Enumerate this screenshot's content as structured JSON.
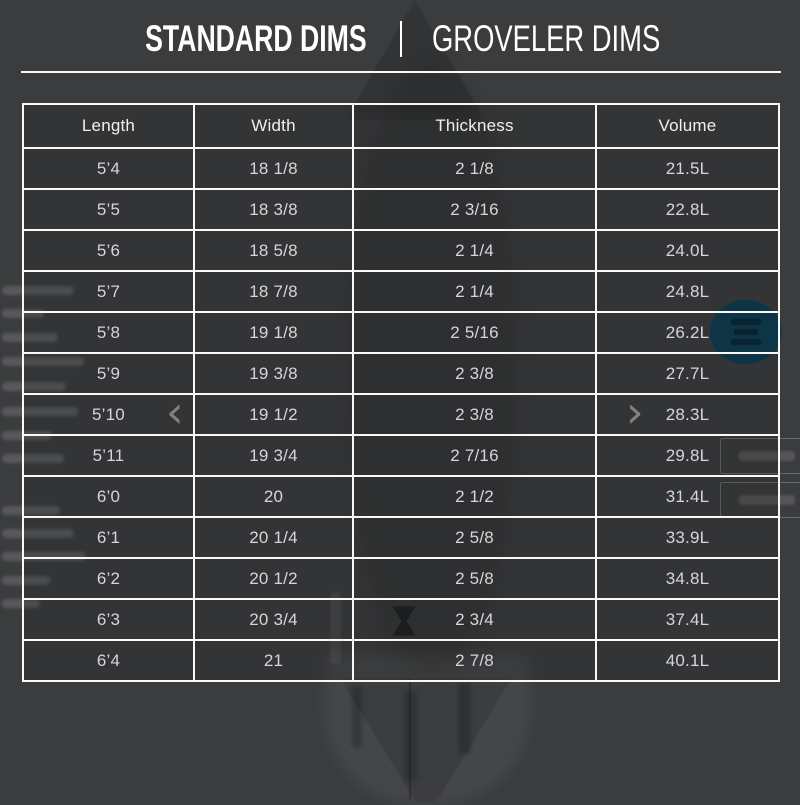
{
  "tabs": [
    {
      "label": "STANDARD DIMS",
      "active": true
    },
    {
      "label": "GROVELER DIMS",
      "active": false
    }
  ],
  "table": {
    "columns": [
      "Length",
      "Width",
      "Thickness",
      "Volume"
    ],
    "rows": [
      [
        "5’4",
        "18 1/8",
        "2 1/8",
        "21.5L"
      ],
      [
        "5’5",
        "18 3/8",
        "2 3/16",
        "22.8L"
      ],
      [
        "5’6",
        "18 5/8",
        "2 1/4",
        "24.0L"
      ],
      [
        "5’7",
        "18 7/8",
        "2 1/4",
        "24.8L"
      ],
      [
        "5’8",
        "19 1/8",
        "2 5/16",
        "26.2L"
      ],
      [
        "5’9",
        "19 3/8",
        "2 3/8",
        "27.7L"
      ],
      [
        "5’10",
        "19 1/2",
        "2 3/8",
        "28.3L"
      ],
      [
        "5’11",
        "19 3/4",
        "2 7/16",
        "29.8L"
      ],
      [
        "6’0",
        "20",
        "2 1/2",
        "31.4L"
      ],
      [
        "6’1",
        "20 1/4",
        "2 5/8",
        "33.9L"
      ],
      [
        "6’2",
        "20 1/2",
        "2 5/8",
        "34.8L"
      ],
      [
        "6’3",
        "20 3/4",
        "2 3/4",
        "37.4L"
      ],
      [
        "6’4",
        "21",
        "2 7/8",
        "40.1L"
      ]
    ]
  },
  "background": {
    "prev_arrow": "‹",
    "next_arrow": "›"
  },
  "colors": {
    "page_background": "#3a3c3e",
    "table_border": "#f8f8f8",
    "header_text": "#f0f0f0",
    "cell_text": "#d6d6d8",
    "tab_text": "#ffffff",
    "badge_teal": "#0d3e52"
  }
}
